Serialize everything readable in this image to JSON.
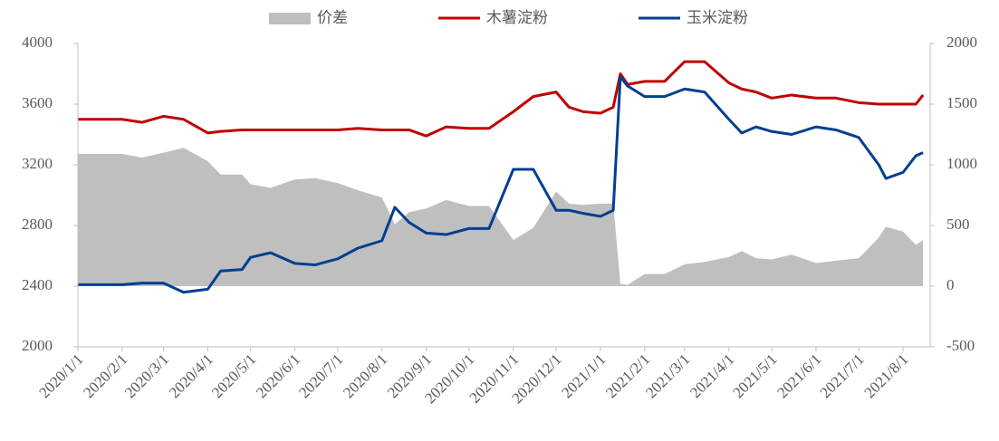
{
  "chart_data": {
    "type": "line",
    "x": [
      "2020/1/1",
      "2020/2/1",
      "2020/2/15",
      "2020/3/1",
      "2020/3/15",
      "2020/4/1",
      "2020/4/10",
      "2020/4/25",
      "2020/5/1",
      "2020/5/15",
      "2020/6/1",
      "2020/6/15",
      "2020/7/1",
      "2020/7/15",
      "2020/8/1",
      "2020/8/10",
      "2020/8/20",
      "2020/9/1",
      "2020/9/15",
      "2020/10/1",
      "2020/10/15",
      "2020/11/1",
      "2020/11/15",
      "2020/12/1",
      "2020/12/10",
      "2020/12/20",
      "2021/1/1",
      "2021/1/10",
      "2021/1/15",
      "2021/1/20",
      "2021/2/1",
      "2021/2/15",
      "2021/3/1",
      "2021/3/15",
      "2021/4/1",
      "2021/4/10",
      "2021/4/20",
      "2021/5/1",
      "2021/5/15",
      "2021/6/1",
      "2021/6/15",
      "2021/7/1",
      "2021/7/15",
      "2021/7/20",
      "2021/8/1",
      "2021/8/10",
      "2021/8/15"
    ],
    "series": [
      {
        "name": "价差",
        "color": "#bfbfbf",
        "kind": "area",
        "axis": "y2",
        "values": [
          1090,
          1090,
          1060,
          1100,
          1140,
          1030,
          920,
          920,
          840,
          810,
          880,
          890,
          850,
          790,
          730,
          510,
          610,
          640,
          710,
          660,
          660,
          380,
          480,
          780,
          680,
          670,
          680,
          680,
          20,
          10,
          100,
          100,
          180,
          200,
          240,
          290,
          230,
          220,
          260,
          190,
          210,
          230,
          400,
          490,
          450,
          340,
          380
        ]
      },
      {
        "name": "木薯淀粉",
        "color": "#c00000",
        "kind": "line",
        "values": [
          3500,
          3500,
          3480,
          3520,
          3500,
          3410,
          3420,
          3430,
          3430,
          3430,
          3430,
          3430,
          3430,
          3440,
          3430,
          3430,
          3430,
          3390,
          3450,
          3440,
          3440,
          3550,
          3650,
          3680,
          3580,
          3550,
          3540,
          3580,
          3800,
          3730,
          3750,
          3750,
          3880,
          3880,
          3740,
          3700,
          3680,
          3640,
          3660,
          3640,
          3640,
          3610,
          3600,
          3600,
          3600,
          3600,
          3660
        ]
      },
      {
        "name": "玉米淀粉",
        "color": "#003f8f",
        "kind": "line",
        "values": [
          2410,
          2410,
          2420,
          2420,
          2360,
          2380,
          2500,
          2510,
          2590,
          2620,
          2550,
          2540,
          2580,
          2650,
          2700,
          2920,
          2820,
          2750,
          2740,
          2780,
          2780,
          3170,
          3170,
          2900,
          2900,
          2880,
          2860,
          2900,
          3780,
          3720,
          3650,
          3650,
          3700,
          3680,
          3500,
          3410,
          3450,
          3420,
          3400,
          3450,
          3430,
          3380,
          3200,
          3110,
          3150,
          3260,
          3280
        ]
      }
    ],
    "xlim": [
      "2020/1/1",
      "2021/8/20"
    ],
    "xticks": [
      "2020/1/1",
      "2020/2/1",
      "2020/3/1",
      "2020/4/1",
      "2020/5/1",
      "2020/6/1",
      "2020/7/1",
      "2020/8/1",
      "2020/9/1",
      "2020/10/1",
      "2020/11/1",
      "2020/12/1",
      "2021/1/1",
      "2021/2/1",
      "2021/3/1",
      "2021/4/1",
      "2021/5/1",
      "2021/6/1",
      "2021/7/1",
      "2021/8/1"
    ],
    "ylim": [
      2000,
      4000
    ],
    "yticks": [
      2000,
      2400,
      2800,
      3200,
      3600,
      4000
    ],
    "y2lim": [
      -500,
      2000
    ],
    "y2ticks": [
      -500,
      0,
      500,
      1000,
      1500,
      2000
    ],
    "legend": "top"
  }
}
